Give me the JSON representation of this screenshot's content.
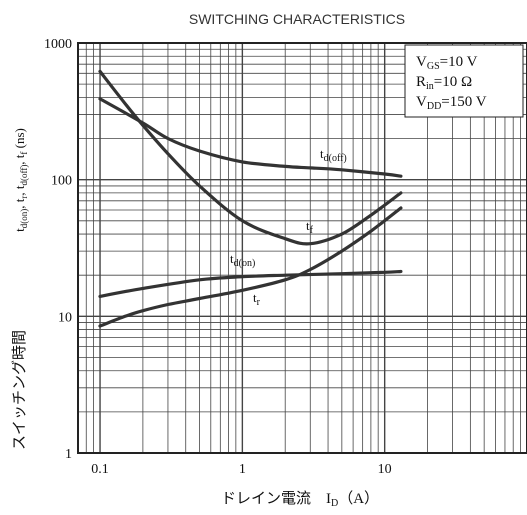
{
  "chart_data": {
    "type": "line",
    "title": "SWITCHING CHARACTERISTICS",
    "xlabel": "ドレイン電流　I_D（A）",
    "ylabel": "t_d(on), t_r, t_d(off), t_f (ns)",
    "ylabel_jp": "スイッチング時間",
    "x_scale": "log",
    "y_scale": "log",
    "xlim": [
      0.07,
      100
    ],
    "ylim": [
      1,
      1000
    ],
    "x_ticks": [
      "0.1",
      "1",
      "10"
    ],
    "y_ticks": [
      "1",
      "10",
      "100",
      "1000"
    ],
    "grid": true,
    "conditions": [
      "V_GS=10 V",
      "R_in=10 Ω",
      "V_DD=150 V"
    ],
    "series": [
      {
        "name": "t_d(off)",
        "x": [
          0.1,
          0.2,
          0.3,
          0.5,
          1,
          2,
          3,
          5,
          10,
          13
        ],
        "y": [
          390,
          260,
          200,
          162,
          135,
          125,
          122,
          118,
          110,
          106
        ]
      },
      {
        "name": "t_f",
        "x": [
          0.1,
          0.15,
          0.2,
          0.3,
          0.5,
          1,
          2,
          3,
          5,
          8,
          13
        ],
        "y": [
          620,
          360,
          250,
          155,
          90,
          50,
          37,
          34,
          40,
          55,
          80
        ]
      },
      {
        "name": "t_d(on)",
        "x": [
          0.1,
          0.2,
          0.5,
          1,
          2,
          5,
          10,
          13
        ],
        "y": [
          14,
          16,
          18.5,
          19.5,
          20,
          20.5,
          21,
          21.3
        ]
      },
      {
        "name": "t_r",
        "x": [
          0.1,
          0.15,
          0.2,
          0.3,
          0.5,
          1,
          2,
          3,
          5,
          8,
          13
        ],
        "y": [
          8.5,
          10,
          11,
          12.2,
          13.5,
          15.5,
          18.5,
          22,
          30,
          42,
          62
        ]
      }
    ]
  }
}
